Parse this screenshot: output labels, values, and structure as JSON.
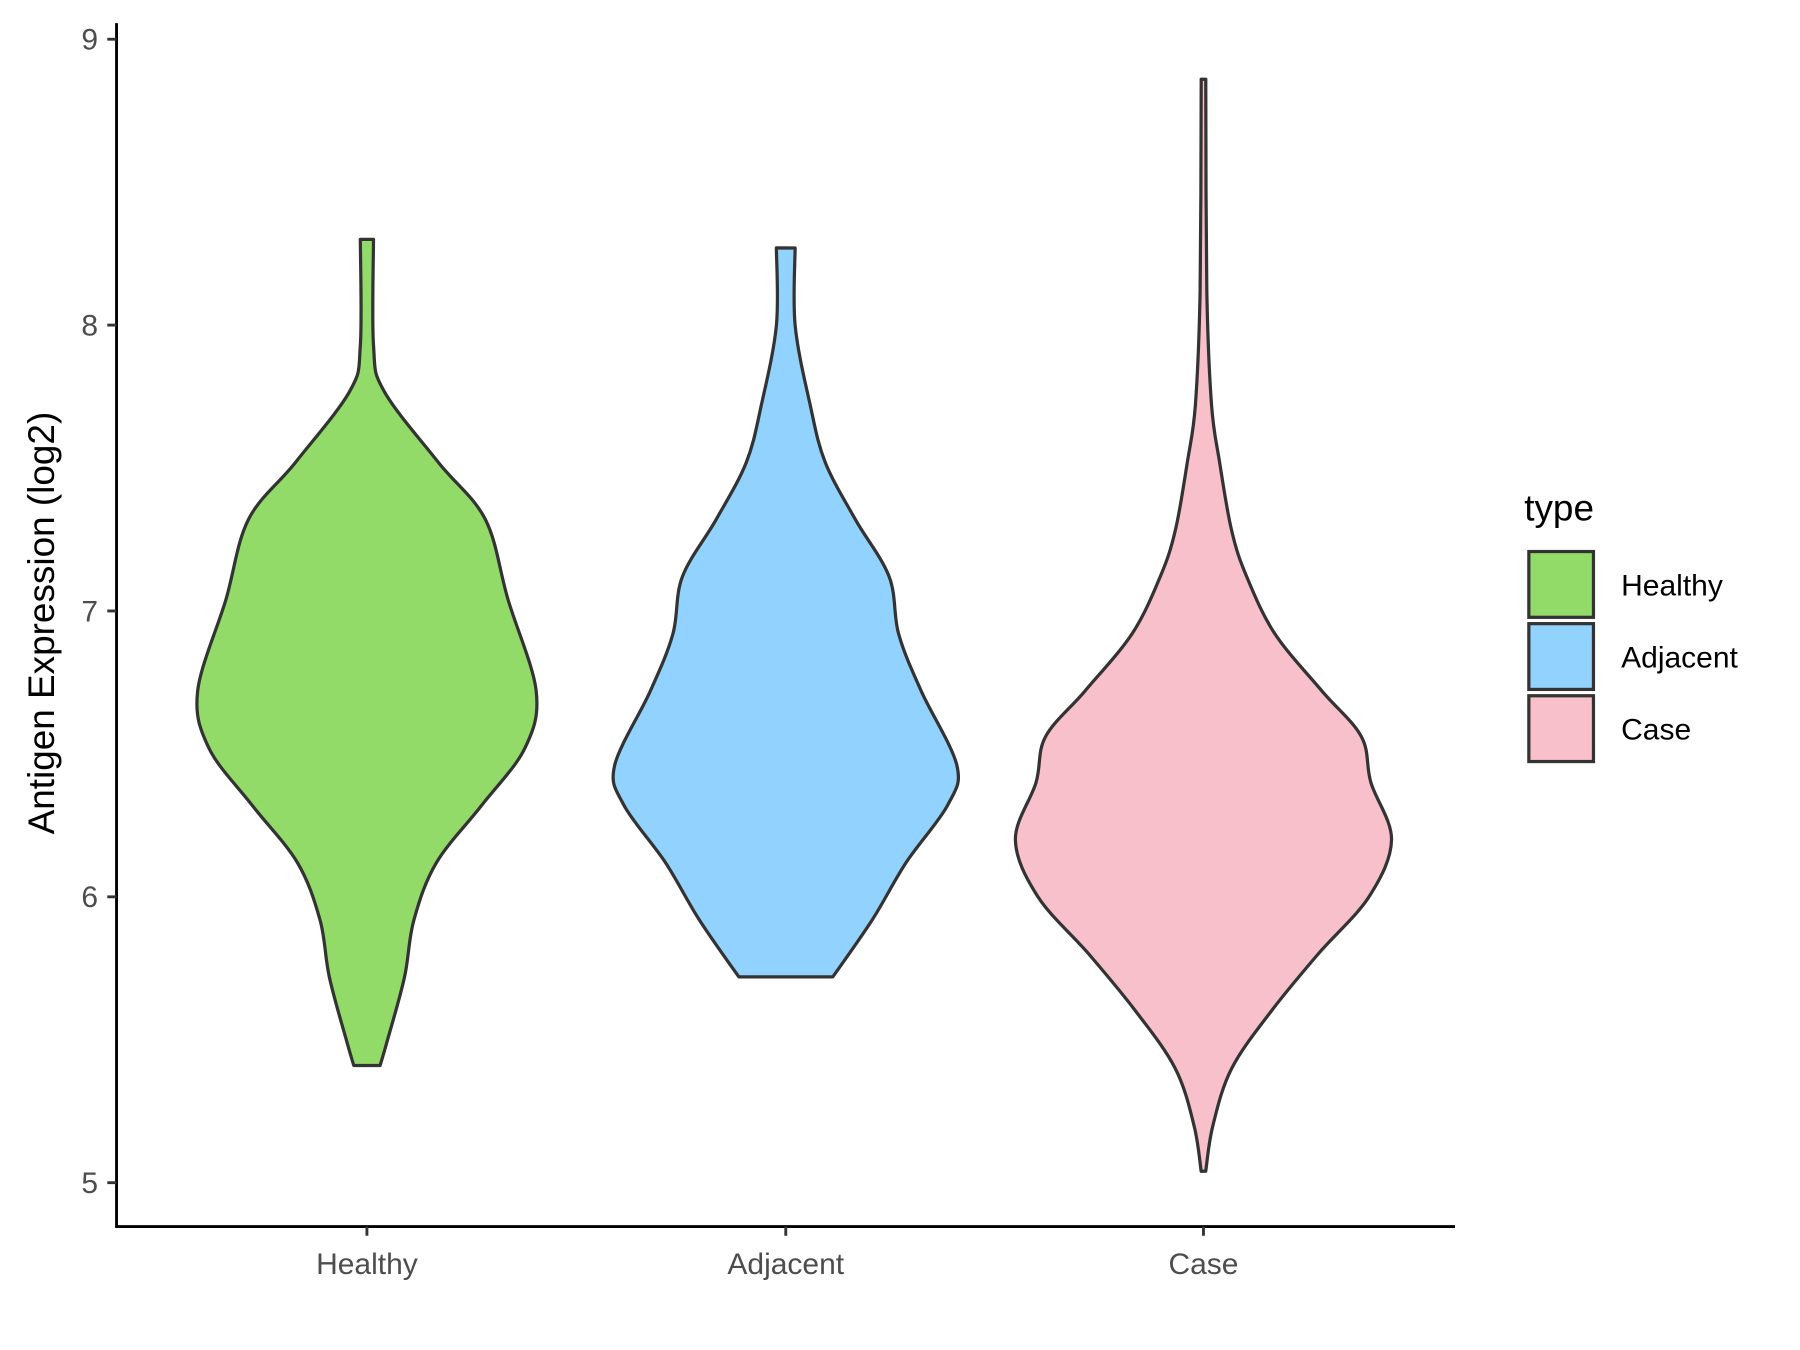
{
  "chart_data": {
    "type": "violin",
    "title": "",
    "xlabel": "",
    "ylabel": "Antigen Expression (log2)",
    "ylim": [
      4.85,
      9.05
    ],
    "yticks": [
      5,
      6,
      7,
      8,
      9
    ],
    "categories": [
      "Healthy",
      "Adjacent",
      "Case"
    ],
    "grid": false,
    "legend": {
      "title": "type",
      "position": "right",
      "entries": [
        "Healthy",
        "Adjacent",
        "Case"
      ]
    },
    "colors": {
      "Healthy": "#93DB69",
      "Adjacent": "#92D2FE",
      "Case": "#F7C0CB",
      "outline": "#333333"
    },
    "series": [
      {
        "name": "Healthy",
        "min": 5.41,
        "max": 8.3,
        "density": [
          [
            5.41,
            0.07
          ],
          [
            5.5,
            0.11
          ],
          [
            5.72,
            0.2
          ],
          [
            5.92,
            0.25
          ],
          [
            6.12,
            0.37
          ],
          [
            6.32,
            0.61
          ],
          [
            6.52,
            0.84
          ],
          [
            6.72,
            0.9
          ],
          [
            7.04,
            0.75
          ],
          [
            7.32,
            0.63
          ],
          [
            7.52,
            0.38
          ],
          [
            7.77,
            0.09
          ],
          [
            7.93,
            0.035
          ],
          [
            8.3,
            0.035
          ]
        ]
      },
      {
        "name": "Adjacent",
        "min": 5.72,
        "max": 8.27,
        "density": [
          [
            5.72,
            0.25
          ],
          [
            5.92,
            0.46
          ],
          [
            6.12,
            0.64
          ],
          [
            6.32,
            0.86
          ],
          [
            6.46,
            0.91
          ],
          [
            6.72,
            0.72
          ],
          [
            6.92,
            0.6
          ],
          [
            7.12,
            0.55
          ],
          [
            7.32,
            0.37
          ],
          [
            7.52,
            0.21
          ],
          [
            7.72,
            0.13
          ],
          [
            8.0,
            0.05
          ],
          [
            8.27,
            0.05
          ]
        ]
      },
      {
        "name": "Case",
        "min": 5.04,
        "max": 8.86,
        "density": [
          [
            5.04,
            0.012
          ],
          [
            5.2,
            0.05
          ],
          [
            5.4,
            0.15
          ],
          [
            5.6,
            0.36
          ],
          [
            5.8,
            0.61
          ],
          [
            6.0,
            0.88
          ],
          [
            6.2,
            1.0
          ],
          [
            6.4,
            0.89
          ],
          [
            6.56,
            0.84
          ],
          [
            6.72,
            0.63
          ],
          [
            6.92,
            0.38
          ],
          [
            7.12,
            0.23
          ],
          [
            7.28,
            0.15
          ],
          [
            7.52,
            0.086
          ],
          [
            7.72,
            0.043
          ],
          [
            8.12,
            0.018
          ],
          [
            8.86,
            0.012
          ]
        ]
      }
    ]
  }
}
